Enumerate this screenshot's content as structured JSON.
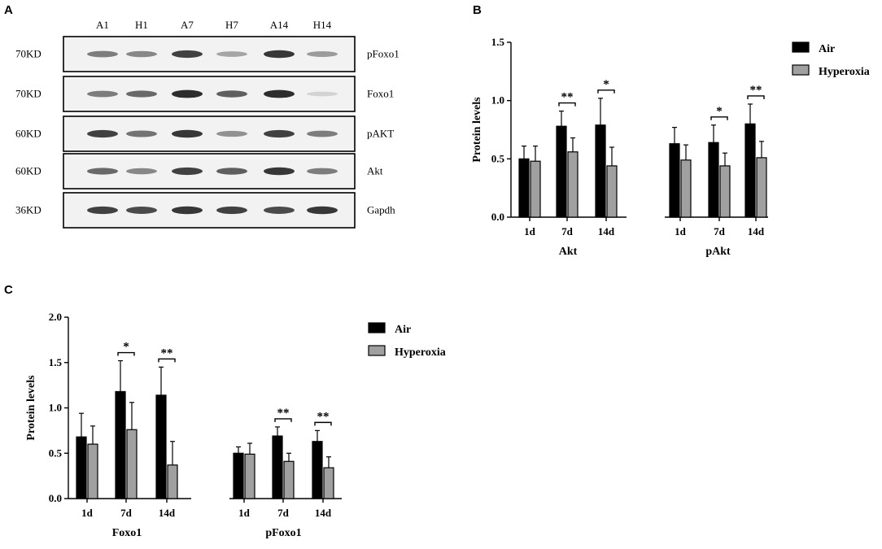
{
  "panels": {
    "a": "A",
    "b": "B",
    "c": "C"
  },
  "blot": {
    "lanes": [
      "A1",
      "H1",
      "A7",
      "H7",
      "A14",
      "H14"
    ],
    "rows": [
      {
        "kd": "70KD",
        "protein": "pFoxo1",
        "intensities": [
          0.55,
          0.5,
          0.85,
          0.35,
          0.9,
          0.4
        ]
      },
      {
        "kd": "70KD",
        "protein": "Foxo1",
        "intensities": [
          0.55,
          0.65,
          0.95,
          0.7,
          0.95,
          0.12
        ]
      },
      {
        "kd": "60KD",
        "protein": "pAKT",
        "intensities": [
          0.85,
          0.6,
          0.9,
          0.45,
          0.85,
          0.55
        ]
      },
      {
        "kd": "60KD",
        "protein": "Akt",
        "intensities": [
          0.65,
          0.5,
          0.85,
          0.7,
          0.9,
          0.55
        ]
      },
      {
        "kd": "36KD",
        "protein": "Gapdh",
        "intensities": [
          0.85,
          0.8,
          0.9,
          0.85,
          0.8,
          0.9
        ]
      }
    ]
  },
  "chart_data": [
    {
      "panel": "B",
      "type": "bar",
      "ylabel": "Protein levels",
      "ylim": [
        0,
        1.5
      ],
      "yticks": [
        "0.0",
        "0.5",
        "1.0",
        "1.5"
      ],
      "groups": [
        {
          "label": "Akt",
          "categories": [
            "1d",
            "7d",
            "14d"
          ]
        },
        {
          "label": "pAkt",
          "categories": [
            "1d",
            "7d",
            "14d"
          ]
        }
      ],
      "series": [
        {
          "name": "Air",
          "color": "#000000",
          "values": [
            0.5,
            0.78,
            0.79,
            0.63,
            0.64,
            0.8
          ],
          "errors": [
            0.11,
            0.13,
            0.23,
            0.14,
            0.15,
            0.17
          ]
        },
        {
          "name": "Hyperoxia",
          "color": "#a0a0a0",
          "values": [
            0.48,
            0.56,
            0.44,
            0.49,
            0.44,
            0.51
          ],
          "errors": [
            0.13,
            0.12,
            0.16,
            0.13,
            0.11,
            0.14
          ]
        }
      ],
      "significance": [
        "",
        "**",
        "*",
        "",
        "*",
        "**"
      ],
      "legend_position": "right"
    },
    {
      "panel": "C",
      "type": "bar",
      "ylabel": "Protein levels",
      "ylim": [
        0,
        2.0
      ],
      "yticks": [
        "0.0",
        "0.5",
        "1.0",
        "1.5",
        "2.0"
      ],
      "groups": [
        {
          "label": "Foxo1",
          "categories": [
            "1d",
            "7d",
            "14d"
          ]
        },
        {
          "label": "pFoxo1",
          "categories": [
            "1d",
            "7d",
            "14d"
          ]
        }
      ],
      "series": [
        {
          "name": "Air",
          "color": "#000000",
          "values": [
            0.68,
            1.18,
            1.14,
            0.5,
            0.69,
            0.63
          ],
          "errors": [
            0.26,
            0.34,
            0.31,
            0.07,
            0.1,
            0.12
          ]
        },
        {
          "name": "Hyperoxia",
          "color": "#a0a0a0",
          "values": [
            0.6,
            0.76,
            0.37,
            0.49,
            0.41,
            0.34
          ],
          "errors": [
            0.2,
            0.3,
            0.26,
            0.12,
            0.09,
            0.12
          ]
        }
      ],
      "significance": [
        "",
        "*",
        "**",
        "",
        "**",
        "**"
      ],
      "legend_position": "right"
    }
  ]
}
